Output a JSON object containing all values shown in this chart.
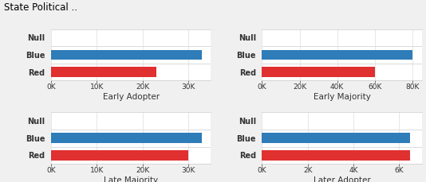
{
  "title": "State Political ..",
  "subplots": [
    {
      "label": "Early Adopter",
      "categories": [
        "Null",
        "Blue",
        "Red"
      ],
      "values": [
        0,
        33000,
        23000
      ],
      "colors": [
        "#cccccc",
        "#2e7cb8",
        "#e03030"
      ],
      "xlim": [
        0,
        35000
      ],
      "xticks": [
        0,
        10000,
        20000,
        30000
      ],
      "xticklabels": [
        "0K",
        "10K",
        "20K",
        "30K"
      ]
    },
    {
      "label": "Early Majority",
      "categories": [
        "Null",
        "Blue",
        "Red"
      ],
      "values": [
        0,
        80000,
        60000
      ],
      "colors": [
        "#cccccc",
        "#2e7cb8",
        "#e03030"
      ],
      "xlim": [
        0,
        85000
      ],
      "xticks": [
        0,
        20000,
        40000,
        60000,
        80000
      ],
      "xticklabels": [
        "0K",
        "20K",
        "40K",
        "60K",
        "80K"
      ]
    },
    {
      "label": "Late Majority",
      "categories": [
        "Null",
        "Blue",
        "Red"
      ],
      "values": [
        0,
        33000,
        30000
      ],
      "colors": [
        "#cccccc",
        "#2e7cb8",
        "#e03030"
      ],
      "xlim": [
        0,
        35000
      ],
      "xticks": [
        0,
        10000,
        20000,
        30000
      ],
      "xticklabels": [
        "0K",
        "10K",
        "20K",
        "30K"
      ]
    },
    {
      "label": "Later Adopter",
      "categories": [
        "Null",
        "Blue",
        "Red"
      ],
      "values": [
        0,
        6500,
        6500
      ],
      "colors": [
        "#cccccc",
        "#2e7cb8",
        "#e03030"
      ],
      "xlim": [
        0,
        7000
      ],
      "xticks": [
        0,
        2000,
        4000,
        6000
      ],
      "xticklabels": [
        "0K",
        "2K",
        "4K",
        "6K"
      ]
    }
  ],
  "bg_color": "#f0f0f0",
  "plot_bg_color": "#ffffff",
  "label_color": "#333333",
  "title_fontsize": 8.5,
  "axis_fontsize": 7,
  "tick_fontsize": 6.5,
  "bar_height": 0.6
}
